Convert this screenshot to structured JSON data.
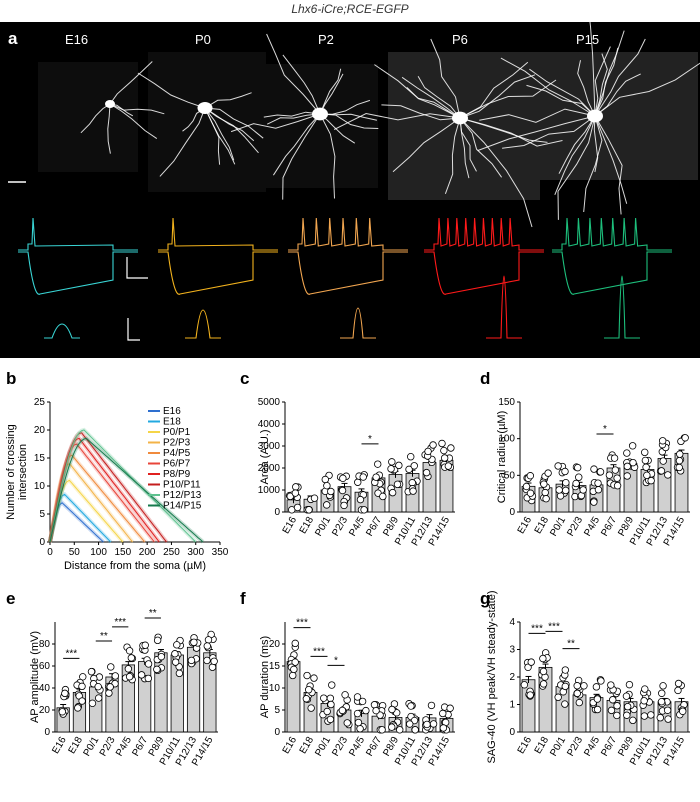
{
  "figure_title": "Lhx6-iCre;RCE-EGFP",
  "panel_a": {
    "label": "a",
    "ages": [
      "E16",
      "P0",
      "P2",
      "P6",
      "P15"
    ],
    "trace_colors": [
      "#39d5d5",
      "#f2b21d",
      "#f2a650",
      "#ff1a1a",
      "#1dbf7c"
    ]
  },
  "chart_data": [
    {
      "label": "b",
      "type": "line",
      "title": "",
      "xlabel": "Distance from the soma (µM)",
      "ylabel_lines": [
        "Number of crossing",
        "intersection"
      ],
      "xlim": [
        0,
        350
      ],
      "ylim": [
        0,
        25
      ],
      "xticks": [
        0,
        50,
        100,
        150,
        200,
        250,
        300,
        350
      ],
      "yticks": [
        0,
        5,
        10,
        15,
        20,
        25
      ],
      "series": [
        {
          "name": "E16",
          "color": "#2e6fcf",
          "peak": 7,
          "peak_x": 25,
          "end_x": 110
        },
        {
          "name": "E18",
          "color": "#22a9e0",
          "peak": 8.5,
          "peak_x": 30,
          "end_x": 125
        },
        {
          "name": "P0/P1",
          "color": "#f5d547",
          "peak": 11,
          "peak_x": 40,
          "end_x": 150
        },
        {
          "name": "P2/P3",
          "color": "#f3b347",
          "peak": 14,
          "peak_x": 40,
          "end_x": 170
        },
        {
          "name": "P4/P5",
          "color": "#f08a3c",
          "peak": 15.5,
          "peak_x": 45,
          "end_x": 195
        },
        {
          "name": "P6/P7",
          "color": "#e8453a",
          "peak": 17.5,
          "peak_x": 55,
          "end_x": 215
        },
        {
          "name": "P8/P9",
          "color": "#e0201f",
          "peak": 18.5,
          "peak_x": 60,
          "end_x": 225
        },
        {
          "name": "P10/P11",
          "color": "#c41e1e",
          "peak": 19.5,
          "peak_x": 65,
          "end_x": 240
        },
        {
          "name": "P12/P13",
          "color": "#5ec28f",
          "peak": 20,
          "peak_x": 70,
          "end_x": 300
        },
        {
          "name": "P14/P15",
          "color": "#157a4d",
          "peak": 18.5,
          "peak_x": 75,
          "end_x": 315
        }
      ]
    },
    {
      "label": "c",
      "type": "bar",
      "xlabel": "",
      "ylabel": "Area (A.U.)",
      "ylim": [
        0,
        5000
      ],
      "yticks": [
        0,
        1000,
        2000,
        3000,
        4000,
        5000
      ],
      "categories": [
        "E16",
        "E18",
        "P0/1",
        "P2/3",
        "P4/5",
        "P6/7",
        "P8/9",
        "P10/11",
        "P12/13",
        "P14/15"
      ],
      "values": [
        550,
        580,
        1000,
        1150,
        900,
        1550,
        1700,
        1750,
        2250,
        2350
      ],
      "sig": [
        {
          "from": 4,
          "to": 5,
          "text": "*"
        }
      ]
    },
    {
      "label": "d",
      "type": "bar",
      "xlabel": "",
      "ylabel": "Critical radius (µM)",
      "ylim": [
        0,
        150
      ],
      "yticks": [
        0,
        50,
        100,
        150
      ],
      "categories": [
        "E16",
        "E18",
        "P0/1",
        "P2/3",
        "P4/5",
        "P6/7",
        "P8/9",
        "P10/11",
        "P12/13",
        "P14/15"
      ],
      "values": [
        35,
        33,
        38,
        36,
        37,
        60,
        66,
        58,
        73,
        80
      ],
      "sig": [
        {
          "from": 4,
          "to": 5,
          "text": "*"
        }
      ]
    },
    {
      "label": "e",
      "type": "bar",
      "xlabel": "",
      "ylabel": "AP amplitude (mV)",
      "ylim": [
        0,
        100
      ],
      "yticks": [
        0,
        20,
        40,
        60,
        80
      ],
      "categories": [
        "E16",
        "E18",
        "P0/1",
        "P2/3",
        "P4/5",
        "P6/7",
        "P8/9",
        "P10/11",
        "P12/13",
        "P14/15"
      ],
      "values": [
        22,
        36,
        41,
        50,
        61,
        64,
        72,
        70,
        77,
        72
      ],
      "sig": [
        {
          "from": 0,
          "to": 1,
          "text": "***"
        },
        {
          "from": 2,
          "to": 3,
          "text": "**"
        },
        {
          "from": 3,
          "to": 4,
          "text": "***"
        },
        {
          "from": 5,
          "to": 6,
          "text": "**"
        }
      ]
    },
    {
      "label": "f",
      "type": "bar",
      "xlabel": "",
      "ylabel": "AP duration (ms)",
      "ylim": [
        0,
        25
      ],
      "yticks": [
        0,
        5,
        10,
        15,
        20
      ],
      "categories": [
        "E16",
        "E18",
        "P0/1",
        "P2/3",
        "P4/5",
        "P6/7",
        "P8/9",
        "P10/11",
        "P12/13",
        "P14/15"
      ],
      "values": [
        16,
        9,
        6.5,
        5,
        4.2,
        3.6,
        3.3,
        3.3,
        3.2,
        3.1
      ],
      "sig": [
        {
          "from": 0,
          "to": 1,
          "text": "***"
        },
        {
          "from": 1,
          "to": 2,
          "text": "***"
        },
        {
          "from": 2,
          "to": 3,
          "text": "*"
        }
      ]
    },
    {
      "label": "g",
      "type": "bar",
      "xlabel": "",
      "ylabel": "SAG-40 (VH peak/VH steady-state)",
      "ylim": [
        0,
        4
      ],
      "yticks": [
        0,
        1,
        2,
        3,
        4
      ],
      "categories": [
        "E16",
        "E18",
        "P0/1",
        "P2/3",
        "P4/5",
        "P6/7",
        "P8/9",
        "P10/11",
        "P12/13",
        "P14/15"
      ],
      "values": [
        1.9,
        2.35,
        1.65,
        1.35,
        1.25,
        1.15,
        1.1,
        1.1,
        1.1,
        1.1
      ],
      "sig": [
        {
          "from": 0,
          "to": 1,
          "text": "***"
        },
        {
          "from": 1,
          "to": 2,
          "text": "***"
        },
        {
          "from": 2,
          "to": 3,
          "text": "**"
        }
      ]
    }
  ]
}
